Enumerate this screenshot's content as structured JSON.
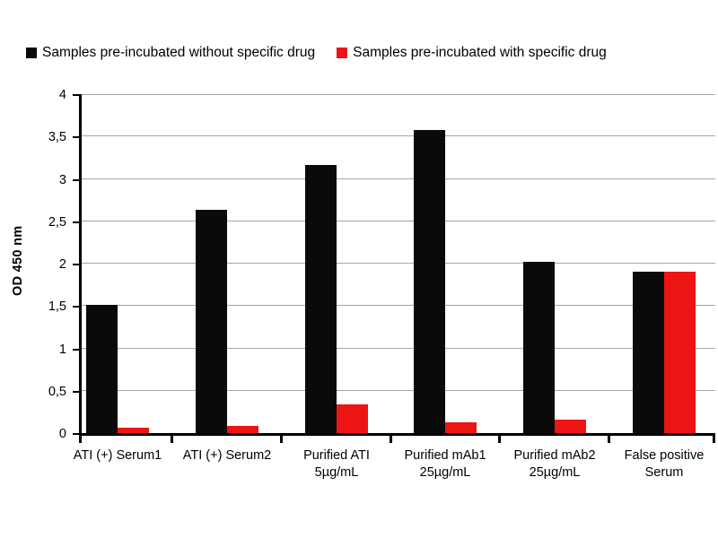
{
  "chart_data": {
    "type": "bar",
    "title": "",
    "xlabel": "",
    "ylabel": "OD 450 nm",
    "ylim": [
      0,
      4
    ],
    "y_ticks": [
      "0",
      "0,5",
      "1",
      "1,5",
      "2",
      "2,5",
      "3",
      "3,5",
      "4"
    ],
    "grid": "horizontal",
    "legend_position": "top",
    "categories": [
      "ATI (+) Serum1",
      "ATI (+) Serum2",
      "Purified ATI\n5µg/mL",
      "Purified mAb1\n25µg/mL",
      "Purified mAb2\n25µg/mL",
      "False positive\nSerum"
    ],
    "series": [
      {
        "name": "Samples pre-incubated without specific drug",
        "color": "#0a0a0a",
        "values": [
          1.51,
          2.63,
          3.16,
          3.58,
          2.02,
          1.91
        ]
      },
      {
        "name": "Samples pre-incubated with specific drug",
        "color": "#ed1414",
        "values": [
          0.06,
          0.08,
          0.34,
          0.13,
          0.16,
          1.91
        ]
      }
    ],
    "colors": {
      "grid": "#a6a6a6",
      "axis": "#000000",
      "background": "#ffffff"
    }
  }
}
